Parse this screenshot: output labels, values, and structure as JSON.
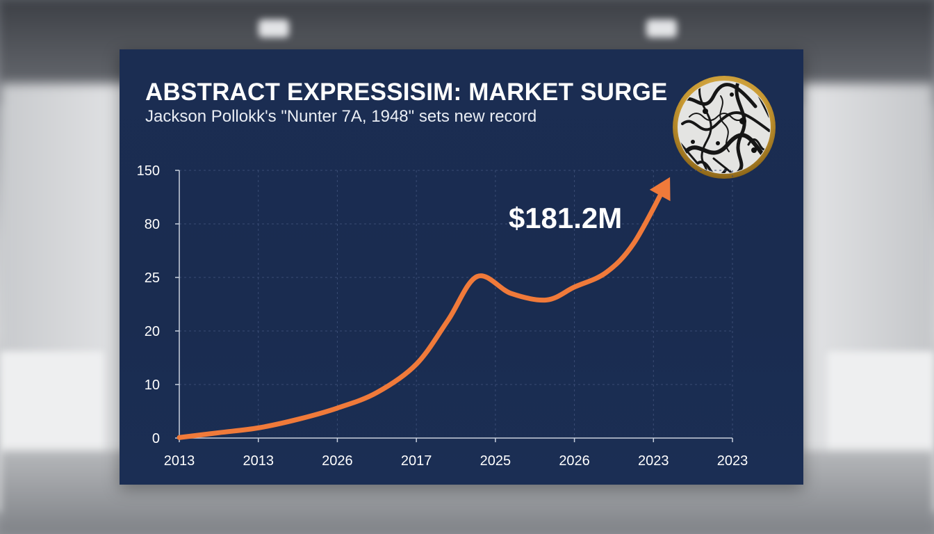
{
  "header": {
    "title": "ABSTRACT EXPRESSISIM: MARKET SURGE",
    "subtitle": "Jackson Pollokk's \"Nunter 7A, 1948\" sets new record"
  },
  "medallion": {
    "icon": "abstract-painting-thumbnail-icon",
    "frame_color": "#d9b44a"
  },
  "colors": {
    "panel": "#1b2d52",
    "line": "#f07a3a",
    "grid": "#3a4c74",
    "axis": "#c9d1de"
  },
  "chart_data": {
    "type": "line",
    "title": "ABSTRACT EXPRESSISIM: MARKET SURGE",
    "x_tick_labels": [
      "2013",
      "2013",
      "2026",
      "2017",
      "2025",
      "2026",
      "2023",
      "2023"
    ],
    "y_tick_labels": [
      "0",
      "10",
      "20",
      "25",
      "80",
      "150"
    ],
    "grid": true,
    "series": [
      {
        "points": [
          {
            "x": 0,
            "y": 0.1
          },
          {
            "x": 0.5,
            "y": 1.0
          },
          {
            "x": 1.0,
            "y": 1.9
          },
          {
            "x": 1.5,
            "y": 3.5
          },
          {
            "x": 2.0,
            "y": 5.6
          },
          {
            "x": 2.5,
            "y": 8.5
          },
          {
            "x": 3.0,
            "y": 13.8
          },
          {
            "x": 3.4,
            "y": 21.0
          },
          {
            "x": 3.77,
            "y": 26.0
          },
          {
            "x": 4.2,
            "y": 23.5
          },
          {
            "x": 4.65,
            "y": 22.9
          },
          {
            "x": 5.0,
            "y": 24.1
          },
          {
            "x": 5.4,
            "y": 30.0
          },
          {
            "x": 5.75,
            "y": 60.0
          },
          {
            "x": 6.15,
            "y": 130.0
          }
        ]
      }
    ],
    "annotation": {
      "text": "$181.2M",
      "x": 4.8,
      "y": 80
    }
  }
}
